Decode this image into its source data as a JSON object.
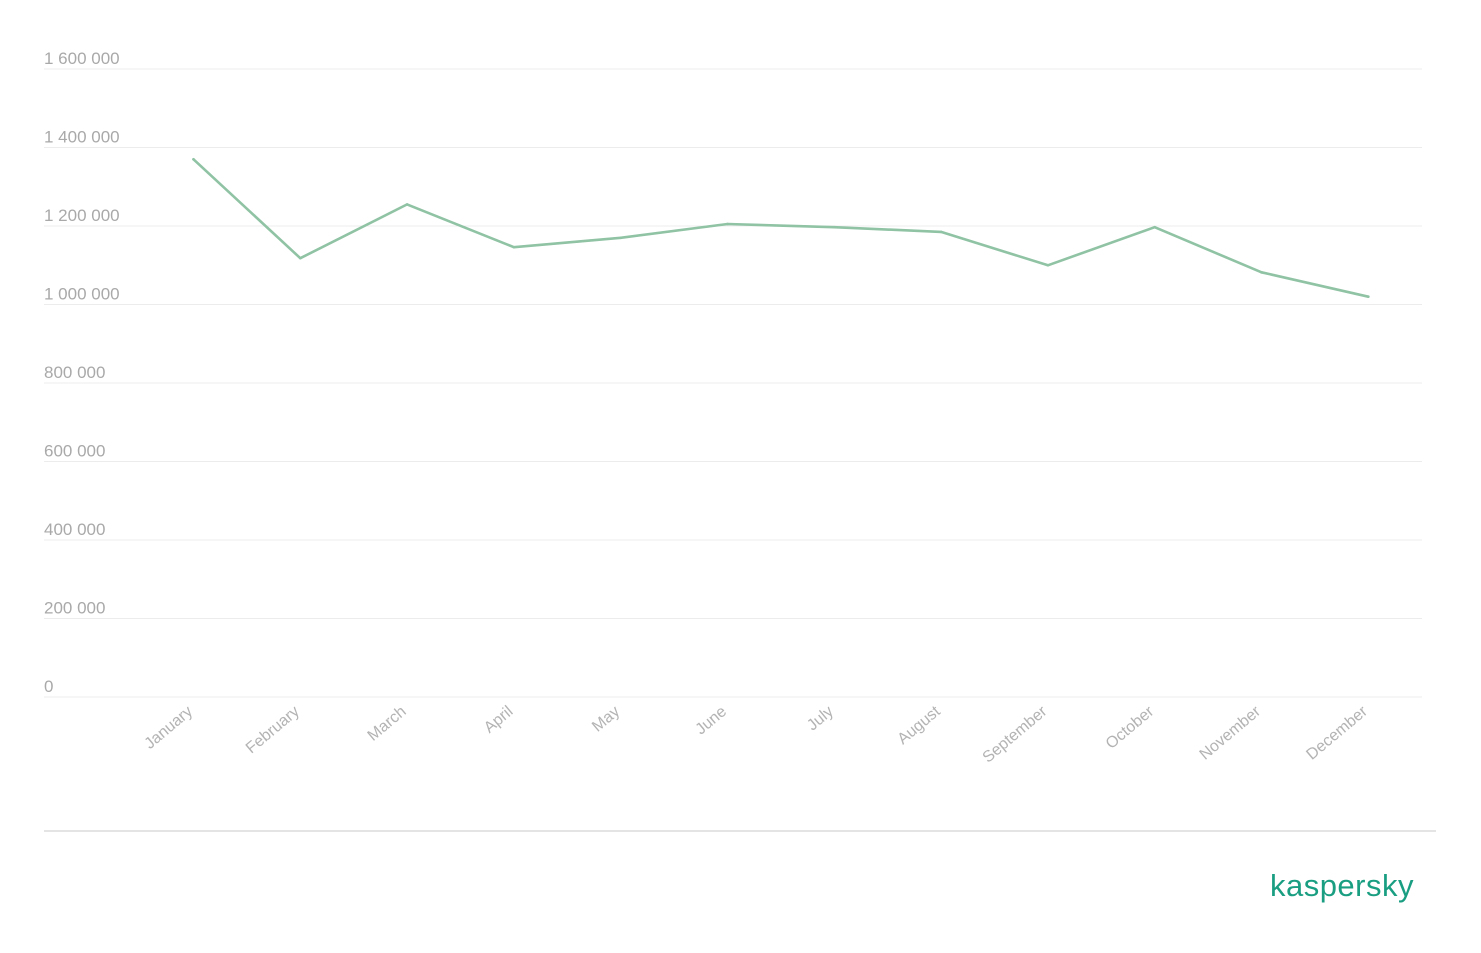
{
  "brand": {
    "logo_text": "kaspersky",
    "color": "#1a9e82"
  },
  "chart_data": {
    "type": "line",
    "title": "",
    "xlabel": "",
    "ylabel": "",
    "categories": [
      "January",
      "February",
      "March",
      "April",
      "May",
      "June",
      "July",
      "August",
      "September",
      "October",
      "November",
      "December"
    ],
    "series": [
      {
        "values": [
          1370000,
          1118000,
          1255000,
          1146000,
          1170000,
          1205000,
          1197000,
          1185000,
          1100000,
          1197000,
          1082000,
          1020000
        ],
        "color": "#8fc3a4"
      }
    ],
    "ylim": [
      0,
      1600000
    ],
    "yticks": [
      0,
      200000,
      400000,
      600000,
      800000,
      1000000,
      1200000,
      1400000,
      1600000
    ],
    "ytick_labels": [
      "0",
      "200 000",
      "400 000",
      "600 000",
      "800 000",
      "1 000 000",
      "1 200 000",
      "1 400 000",
      "1 600 000"
    ],
    "grid": true,
    "legend": "none"
  }
}
